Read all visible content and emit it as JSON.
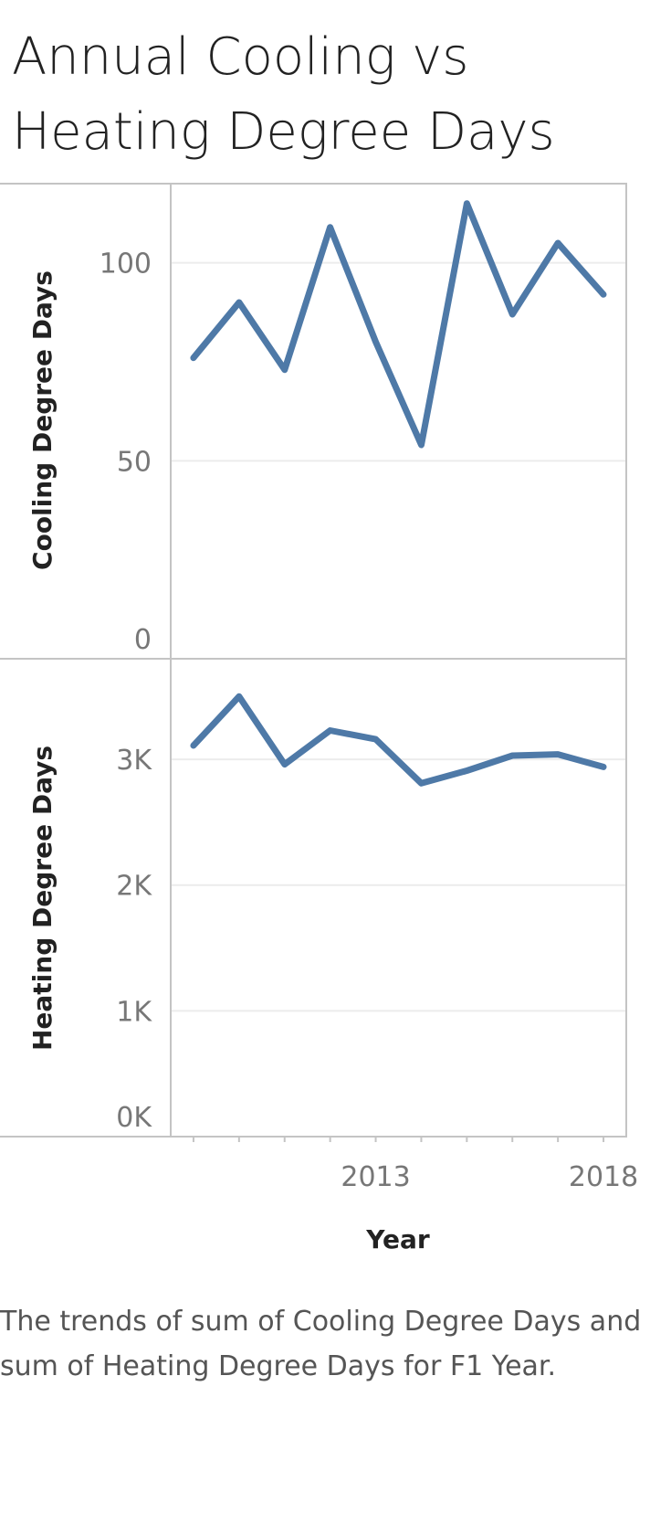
{
  "title": "Annual Cooling vs Heating Degree Days",
  "caption": "The trends of sum of Cooling Degree Days and sum of Heating Degree Days for F1 Year.",
  "colors": {
    "line": "#4e79a7",
    "frame": "#c4c4c4",
    "grid": "#ececec",
    "tick_text": "#777777",
    "title_text": "#222222"
  },
  "chart_data": {
    "type": "line",
    "x": [
      2009,
      2010,
      2011,
      2012,
      2013,
      2014,
      2015,
      2016,
      2017,
      2018
    ],
    "xlabel": "Year",
    "x_ticks": [
      2013,
      2018
    ],
    "x_tick_labels": [
      "2013",
      "2018"
    ],
    "xlim": [
      2008.5,
      2018.5
    ],
    "grid": true,
    "panels": [
      {
        "ylabel": "Cooling Degree Days",
        "ylim": [
          0,
          120
        ],
        "y_ticks": [
          0,
          50,
          100
        ],
        "y_tick_labels": [
          "0",
          "50",
          "100"
        ],
        "values": [
          76,
          90,
          73,
          109,
          80,
          54,
          115,
          87,
          105,
          92
        ]
      },
      {
        "ylabel": "Heating Degree Days",
        "ylim": [
          0,
          3800
        ],
        "y_ticks": [
          0,
          1000,
          2000,
          3000
        ],
        "y_tick_labels": [
          "0K",
          "1K",
          "2K",
          "3K"
        ],
        "values": [
          3110,
          3500,
          2960,
          3230,
          3160,
          2810,
          2910,
          3030,
          3040,
          2940
        ]
      }
    ]
  }
}
